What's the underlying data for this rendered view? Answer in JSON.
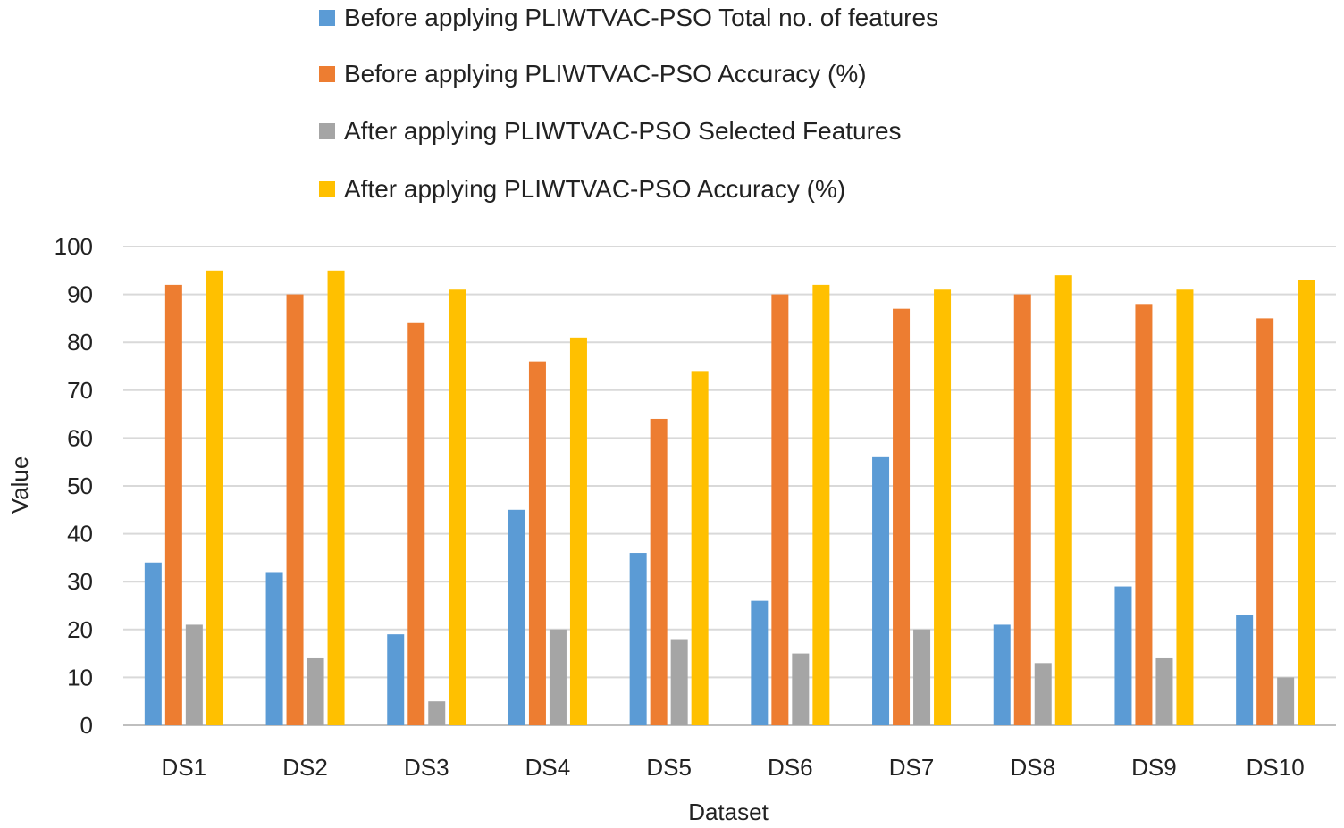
{
  "chart_data": {
    "type": "bar",
    "title": "",
    "xlabel": "Dataset",
    "ylabel": "Value",
    "ylim": [
      0,
      100
    ],
    "yticks": [
      0,
      10,
      20,
      30,
      40,
      50,
      60,
      70,
      80,
      90,
      100
    ],
    "grid": "horizontal",
    "legend_position": "top",
    "categories": [
      "DS1",
      "DS2",
      "DS3",
      "DS4",
      "DS5",
      "DS6",
      "DS7",
      "DS8",
      "DS9",
      "DS10"
    ],
    "series": [
      {
        "name": "Before applying PLIWTVAC-PSO Total no. of features",
        "color": "#5B9BD5",
        "values": [
          34,
          32,
          19,
          45,
          36,
          26,
          56,
          21,
          29,
          23
        ]
      },
      {
        "name": "Before applying PLIWTVAC-PSO Accuracy (%)",
        "color": "#ED7D31",
        "values": [
          92,
          90,
          84,
          76,
          64,
          90,
          87,
          90,
          88,
          85
        ]
      },
      {
        "name": "After applying PLIWTVAC-PSO Selected Features",
        "color": "#A5A5A5",
        "values": [
          21,
          14,
          5,
          20,
          18,
          15,
          20,
          13,
          14,
          10
        ]
      },
      {
        "name": "After applying PLIWTVAC-PSO Accuracy (%)",
        "color": "#FFC000",
        "values": [
          95,
          95,
          91,
          81,
          74,
          92,
          91,
          94,
          91,
          93
        ]
      }
    ]
  }
}
